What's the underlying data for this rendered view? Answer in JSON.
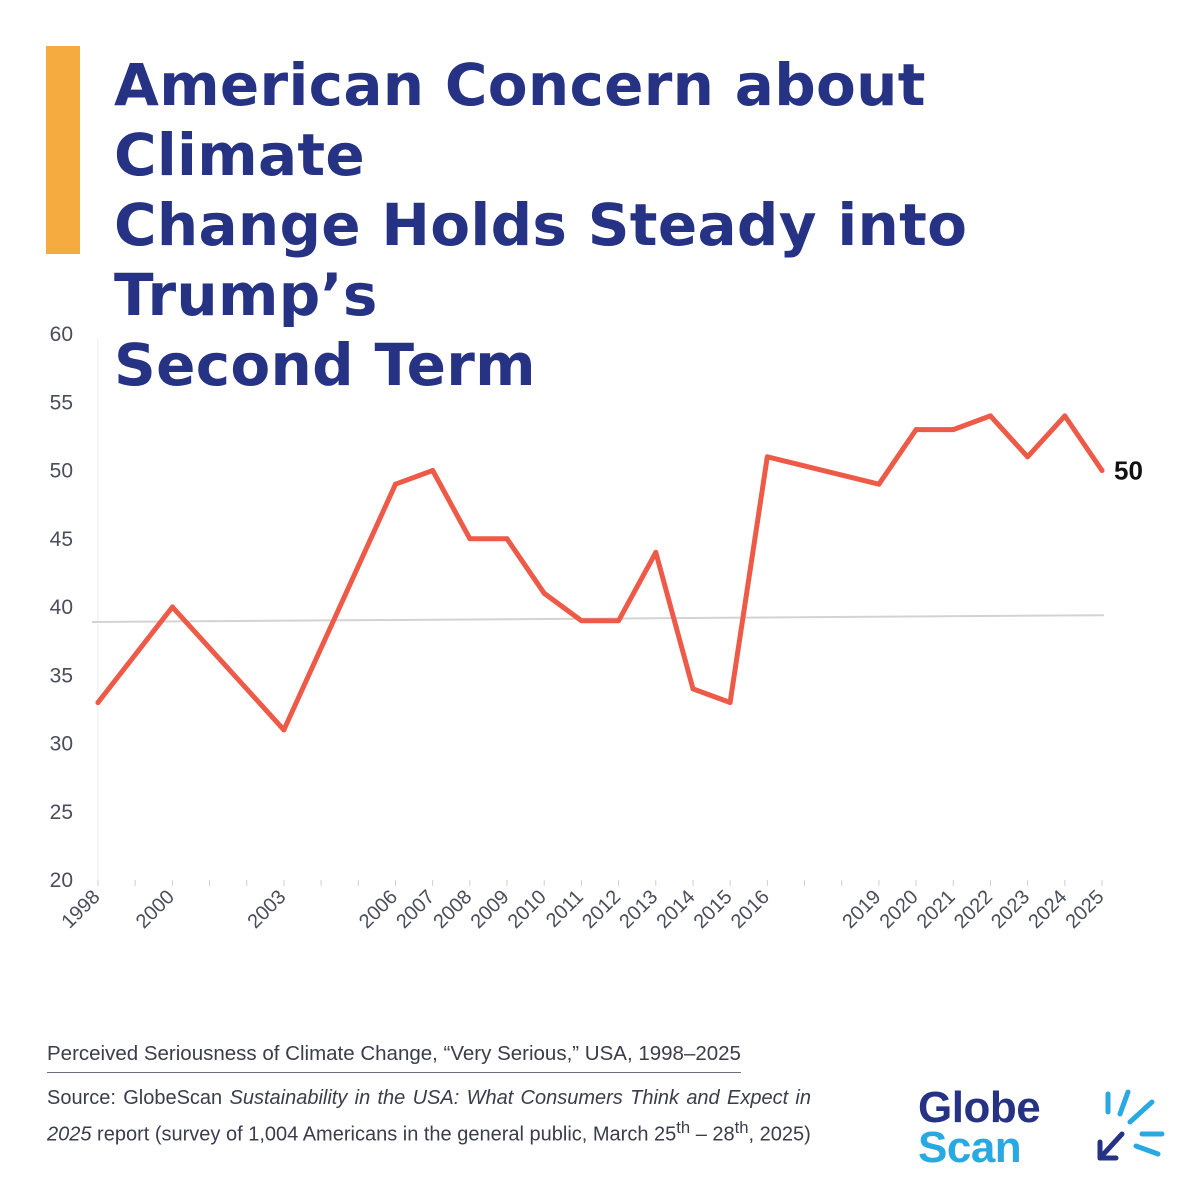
{
  "title_lines": [
    "American Concern about Climate",
    "Change Holds Steady into Trump’s",
    "Second Term"
  ],
  "colors": {
    "accent": "#F5AB40",
    "title": "#263284",
    "series": "#EE5A48",
    "trend": "#D3D3D3",
    "logo_dark": "#263284",
    "logo_light": "#29A9E1"
  },
  "chart_data": {
    "type": "line",
    "title": "",
    "xlabel": "",
    "ylabel": "",
    "ylim": [
      20,
      60
    ],
    "yticks": [
      "20",
      "25",
      "30",
      "35",
      "40",
      "45",
      "50",
      "55",
      "60"
    ],
    "x": [
      "1998",
      "2000",
      "2003",
      "2006",
      "2007",
      "2008",
      "2009",
      "2010",
      "2011",
      "2012",
      "2013",
      "2014",
      "2015",
      "2016",
      "2019",
      "2020",
      "2021",
      "2022",
      "2023",
      "2024",
      "2025"
    ],
    "series": [
      {
        "name": "Very Serious",
        "values": [
          33,
          40,
          31,
          49,
          50,
          45,
          45,
          41,
          39,
          39,
          44,
          34,
          33,
          51,
          49,
          53,
          53,
          54,
          51,
          54,
          50
        ]
      }
    ],
    "trendline": {
      "start": 38.9,
      "end": 39.4
    },
    "end_label": "50",
    "grid": false
  },
  "caption": "Perceived Seriousness of Climate Change, “Very Serious,” USA, 1998–2025",
  "source": {
    "prefix": "Source: GlobeScan ",
    "italic_1": "Sustainability in the USA: What Consumers Think and Expect in 2025",
    "mid": " report (survey of 1,004 Americans in the general public, March 25",
    "sup_1": "th",
    "dash": " – 28",
    "sup_2": "th",
    "suffix": ", 2025)"
  },
  "logo": {
    "line1": "Globe",
    "line2": "Scan"
  }
}
